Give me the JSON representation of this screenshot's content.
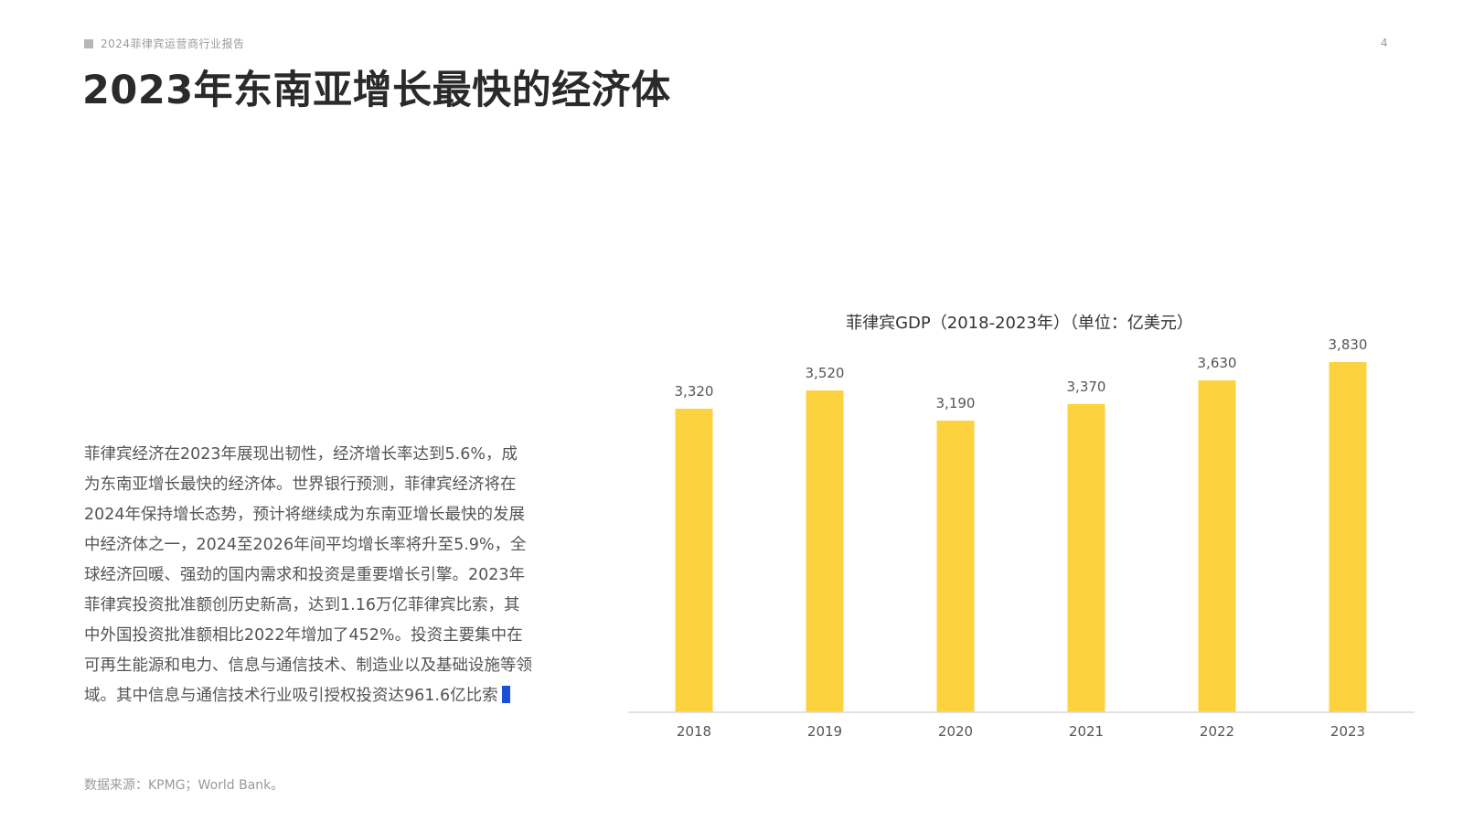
{
  "header": {
    "report_label": "2024菲律宾运营商行业报告",
    "page_number": "4"
  },
  "page_title": "2023年东南亚增长最快的经济体",
  "body_text": "菲律宾经济在2023年展现出韧性，经济增长率达到5.6%，成为东南亚增长最快的经济体。世界银行预测，菲律宾经济将在2024年保持增长态势，预计将继续成为东南亚增长最快的发展中经济体之一，2024至2026年间平均增长率将升至5.9%，全球经济回暖、强劲的国内需求和投资是重要增长引擎。2023年菲律宾投资批准额创历史新高，达到1.16万亿菲律宾比索，其中外国投资批准额相比2022年增加了452%。投资主要集中在可再生能源和电力、信息与通信技术、制造业以及基础设施等领域。其中信息与通信技术行业吸引授权投资达961.6亿比索",
  "source_note": "数据来源：KPMG；World Bank。",
  "colors": {
    "bar": "#FDD23F",
    "axis": "#d9d9d9",
    "cursor": "#1a4fd6"
  },
  "chart_data": {
    "type": "bar",
    "title": "菲律宾GDP（2018-2023年）（单位：亿美元）",
    "categories": [
      "2018",
      "2019",
      "2020",
      "2021",
      "2022",
      "2023"
    ],
    "values": [
      3320,
      3520,
      3190,
      3370,
      3630,
      3830
    ],
    "value_labels": [
      "3,320",
      "3,520",
      "3,190",
      "3,370",
      "3,630",
      "3,830"
    ],
    "xlabel": "",
    "ylabel": "",
    "ylim": [
      0,
      4000
    ],
    "grid": false,
    "legend": "none"
  }
}
